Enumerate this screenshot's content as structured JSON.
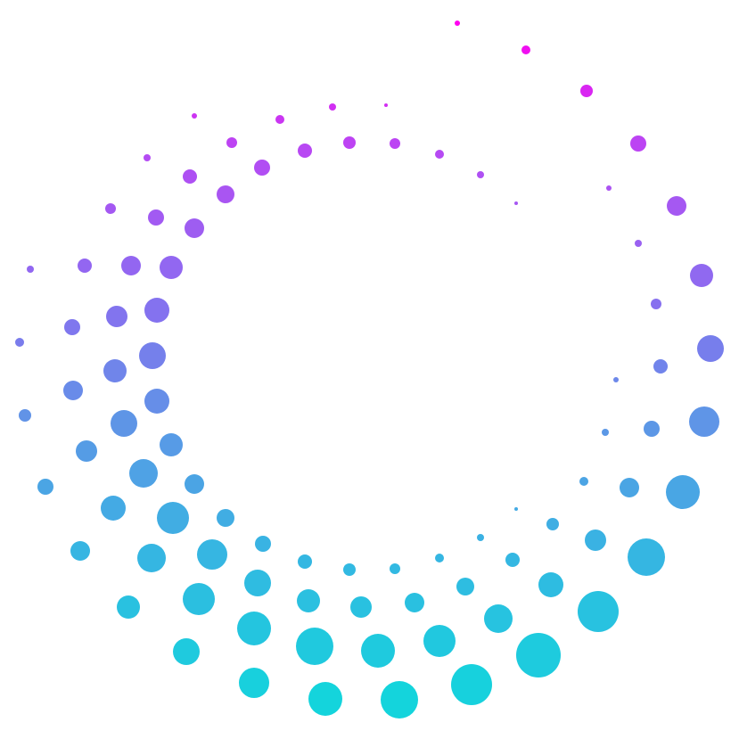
{
  "artwork": {
    "description_icon": "dotted-spiral-ring-icon",
    "background_color": "#ffffff",
    "gradient_colors": [
      "#ff00f0",
      "#b44cf3",
      "#8a6df0",
      "#5c97e6",
      "#33b8e2",
      "#14d4dc"
    ]
  }
}
